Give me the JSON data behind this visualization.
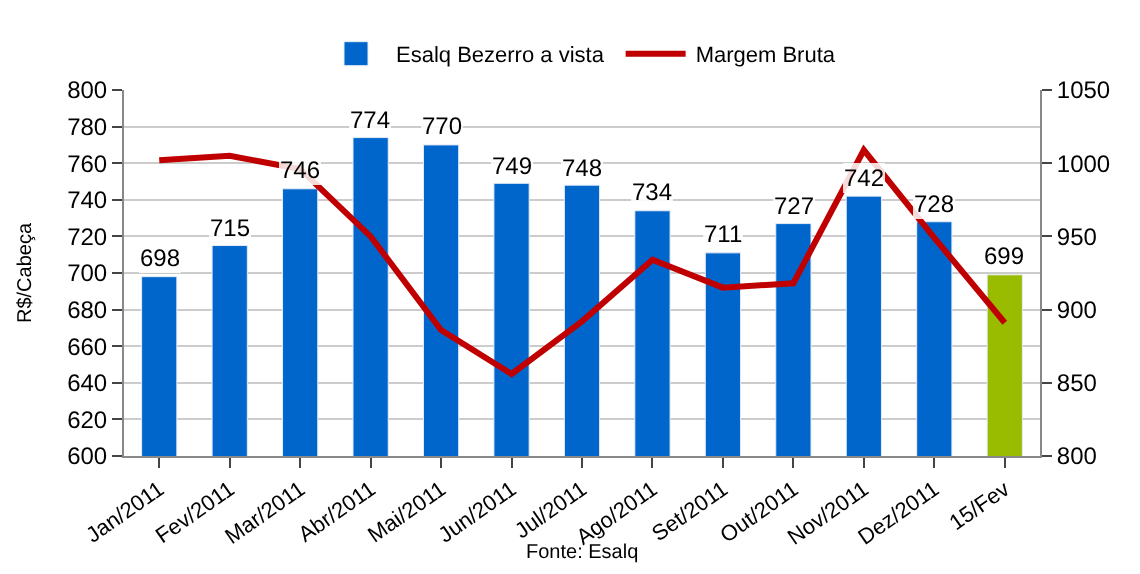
{
  "chart_data": {
    "type": "bar",
    "ylabel": "R$/Cabeça",
    "categories": [
      "Jan/2011",
      "Fev/2011",
      "Mar/2011",
      "Abr/2011",
      "Mai/2011",
      "Jun/2011",
      "Jul/2011",
      "Ago/2011",
      "Set/2011",
      "Out/2011",
      "Nov/2011",
      "Dez/2011",
      "15/Fev"
    ],
    "series": [
      {
        "name": "Esalq Bezerro a vista",
        "color": "#0066cc",
        "value_labels": [
          "698",
          "715",
          "746",
          "774",
          "770",
          "749",
          "748",
          "734",
          "711",
          "727",
          "742",
          "728",
          "699"
        ],
        "colors": [
          "#0066cc",
          "#0066cc",
          "#0066cc",
          "#0066cc",
          "#0066cc",
          "#0066cc",
          "#0066cc",
          "#0066cc",
          "#0066cc",
          "#0066cc",
          "#0066cc",
          "#0066cc",
          "#99bb00"
        ],
        "values": [
          698,
          715,
          746,
          774,
          770,
          749,
          748,
          734,
          711,
          727,
          742,
          728,
          699
        ]
      },
      {
        "name": "Margem Bruta",
        "type": "line",
        "axis": "y2",
        "color": "#c00000",
        "values": [
          1002,
          1005,
          996,
          950,
          886,
          856,
          892,
          934,
          915,
          918,
          1009,
          949,
          891
        ]
      }
    ],
    "ylim": [
      600,
      800
    ],
    "yticks": [
      600,
      620,
      640,
      660,
      680,
      700,
      720,
      740,
      760,
      780,
      800
    ],
    "y2lim": [
      800,
      1050
    ],
    "y2ticks": [
      800,
      850,
      900,
      950,
      1000,
      1050
    ],
    "grid": "y",
    "legend": "top",
    "marker": "none",
    "line_style": "solid",
    "annotations": [
      "Fonte: Esalq"
    ]
  }
}
